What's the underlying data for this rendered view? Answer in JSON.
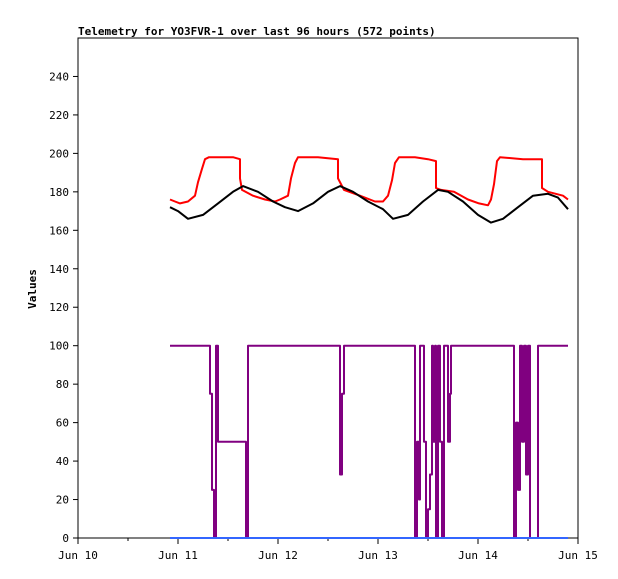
{
  "chart_data": {
    "type": "line",
    "title": "Telemetry for YO3FVR-1 over last 96 hours (572 points)",
    "ylabel": "Values",
    "xlabel": "",
    "ylim": [
      0,
      260
    ],
    "xlim": [
      10,
      15
    ],
    "grid": false,
    "legend": "none",
    "x_tick_labels": [
      "Jun 10",
      "Jun 11",
      "Jun 12",
      "Jun 13",
      "Jun 14",
      "Jun 15"
    ],
    "x_tick_values": [
      10,
      11,
      12,
      13,
      14,
      15
    ],
    "y_tick_values": [
      0,
      20,
      40,
      60,
      80,
      100,
      120,
      140,
      160,
      180,
      200,
      220,
      240
    ],
    "x_minor_tick_values": [
      10.5,
      11.5,
      12.5,
      13.5,
      14.5
    ],
    "series": [
      {
        "color": "#ff0000",
        "x": [
          10.92,
          10.97,
          11.02,
          11.1,
          11.17,
          11.2,
          11.24,
          11.27,
          11.31,
          11.45,
          11.55,
          11.62,
          11.62,
          11.64,
          11.75,
          11.87,
          11.97,
          12.02,
          12.1,
          12.13,
          12.17,
          12.2,
          12.4,
          12.6,
          12.6,
          12.66,
          12.82,
          12.97,
          13.05,
          13.1,
          13.14,
          13.17,
          13.21,
          13.37,
          13.5,
          13.58,
          13.58,
          13.63,
          13.76,
          13.9,
          14.01,
          14.1,
          14.13,
          14.16,
          14.19,
          14.22,
          14.45,
          14.64,
          14.64,
          14.7,
          14.85,
          14.9
        ],
        "y": [
          176,
          175,
          174,
          175,
          178,
          185,
          192,
          197,
          198,
          198,
          198,
          197,
          187,
          181,
          178,
          176,
          175,
          176,
          178,
          187,
          195,
          198,
          198,
          197,
          187,
          181,
          178,
          175,
          175,
          178,
          186,
          195,
          198,
          198,
          197,
          196,
          182,
          181,
          180,
          176,
          174,
          173,
          176,
          184,
          196,
          198,
          197,
          197,
          182,
          180,
          178,
          176
        ]
      },
      {
        "color": "#000000",
        "x": [
          10.92,
          11.0,
          11.1,
          11.25,
          11.4,
          11.55,
          11.65,
          11.8,
          11.95,
          12.07,
          12.2,
          12.35,
          12.5,
          12.62,
          12.75,
          12.9,
          13.05,
          13.15,
          13.3,
          13.45,
          13.6,
          13.7,
          13.85,
          14.0,
          14.13,
          14.25,
          14.4,
          14.55,
          14.7,
          14.8,
          14.9
        ],
        "y": [
          172,
          170,
          166,
          168,
          174,
          180,
          183,
          180,
          175,
          172,
          170,
          174,
          180,
          183,
          180,
          175,
          171,
          166,
          168,
          175,
          181,
          180,
          175,
          168,
          164,
          166,
          172,
          178,
          179,
          177,
          171
        ]
      },
      {
        "color": "#800080",
        "x": [
          10.92,
          11.32,
          11.32,
          11.34,
          11.34,
          11.36,
          11.36,
          11.38,
          11.38,
          11.4,
          11.4,
          11.68,
          11.68,
          11.7,
          11.7,
          11.75,
          11.75,
          12.62,
          12.62,
          12.64,
          12.64,
          12.66,
          12.66,
          13.37,
          13.37,
          13.39,
          13.39,
          13.41,
          13.41,
          13.42,
          13.42,
          13.46,
          13.46,
          13.48,
          13.48,
          13.5,
          13.5,
          13.52,
          13.52,
          13.54,
          13.54,
          13.55,
          13.55,
          13.57,
          13.57,
          13.58,
          13.58,
          13.6,
          13.6,
          13.62,
          13.62,
          13.64,
          13.64,
          13.66,
          13.66,
          13.7,
          13.7,
          13.72,
          13.72,
          13.73,
          13.73,
          13.75,
          13.75,
          14.36,
          14.36,
          14.38,
          14.38,
          14.4,
          14.4,
          14.42,
          14.42,
          14.44,
          14.44,
          14.46,
          14.46,
          14.48,
          14.48,
          14.5,
          14.5,
          14.52,
          14.52,
          14.6,
          14.6,
          14.9
        ],
        "y": [
          100,
          100,
          75,
          75,
          25,
          25,
          0,
          0,
          100,
          100,
          50,
          50,
          0,
          0,
          100,
          100,
          100,
          100,
          33,
          33,
          75,
          75,
          100,
          100,
          0,
          0,
          50,
          50,
          20,
          20,
          100,
          100,
          50,
          50,
          0,
          0,
          15,
          15,
          33,
          33,
          100,
          100,
          50,
          50,
          100,
          100,
          0,
          0,
          100,
          100,
          50,
          50,
          0,
          0,
          100,
          100,
          50,
          50,
          75,
          75,
          100,
          100,
          100,
          100,
          0,
          0,
          60,
          60,
          25,
          25,
          100,
          100,
          50,
          50,
          100,
          100,
          33,
          33,
          100,
          100,
          0,
          0,
          100,
          100
        ]
      },
      {
        "color": "#3366ff",
        "x": [
          10.92,
          14.9
        ],
        "y": [
          0,
          0
        ]
      }
    ]
  }
}
